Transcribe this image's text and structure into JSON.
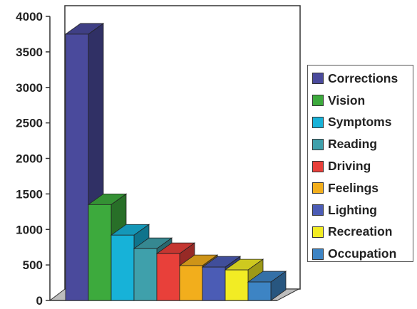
{
  "chart_data": {
    "type": "bar",
    "style": "3d-column",
    "categories": [
      "Corrections",
      "Vision",
      "Symptoms",
      "Reading",
      "Driving",
      "Feelings",
      "Lighting",
      "Recreation",
      "Occupation"
    ],
    "values": [
      3750,
      1350,
      920,
      730,
      660,
      490,
      470,
      430,
      260
    ],
    "ylim": [
      0,
      4000
    ],
    "yticks": [
      "0",
      "500",
      "1000",
      "1500",
      "2000",
      "2500",
      "3000",
      "3500",
      "4000"
    ],
    "title": "",
    "xlabel": "",
    "ylabel": "",
    "grid": false,
    "legend_position": "right",
    "colors": {
      "Corrections": "#4a4a9c",
      "Vision": "#3daa3d",
      "Symptoms": "#17b2d8",
      "Reading": "#3fa0ab",
      "Driving": "#e8403a",
      "Feelings": "#f2ae1c",
      "Lighting": "#4b5cb5",
      "Recreation": "#f2ec24",
      "Occupation": "#3d84c4"
    }
  }
}
